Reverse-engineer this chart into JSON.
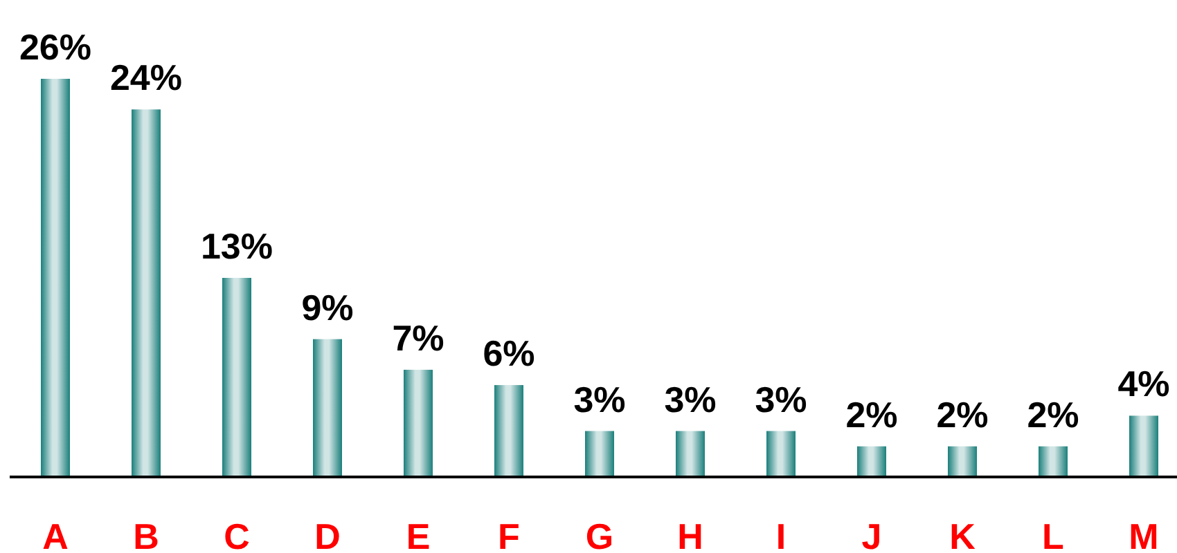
{
  "chart_data": {
    "type": "bar",
    "categories": [
      "A",
      "B",
      "C",
      "D",
      "E",
      "F",
      "G",
      "H",
      "I",
      "J",
      "K",
      "L",
      "M"
    ],
    "values": [
      26,
      24,
      13,
      9,
      7,
      6,
      3,
      3,
      3,
      2,
      2,
      2,
      4
    ],
    "value_labels": [
      "26%",
      "24%",
      "13%",
      "9%",
      "7%",
      "6%",
      "3%",
      "3%",
      "3%",
      "2%",
      "2%",
      "2%",
      "4%"
    ],
    "color": "#1b7f7b"
  }
}
